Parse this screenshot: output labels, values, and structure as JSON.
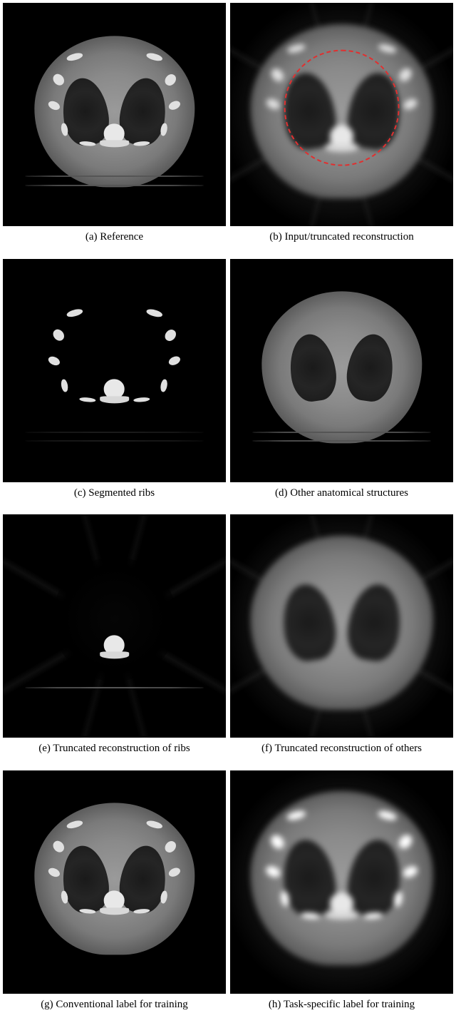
{
  "figure": {
    "background_color": "#ffffff",
    "caption_fontsize": 15,
    "caption_color": "#000000",
    "caption_font": "Times New Roman",
    "grid_gap_row": 8,
    "grid_gap_col": 6,
    "panels": [
      {
        "id": "a",
        "label": "(a) Reference",
        "type": "ct-scan",
        "variant": "reference",
        "colors": {
          "background": "#000000",
          "body": "#8a8a8a",
          "lung": "#1a1a1a",
          "bone": "#e8e8e8"
        }
      },
      {
        "id": "b",
        "label": "(b) Input/truncated reconstruction",
        "type": "ct-scan",
        "variant": "truncated-input",
        "colors": {
          "background": "#000000",
          "body": "#8a8a8a",
          "lung": "#1a1a1a",
          "bone": "#e8e8e8",
          "dashed_circle": "#e03030"
        },
        "annotation": {
          "dashed_circle_diameter_pct": 52,
          "dashed_circle_stroke": 2,
          "dashed_circle_style": "dashed"
        }
      },
      {
        "id": "c",
        "label": "(c) Segmented ribs",
        "type": "ct-scan",
        "variant": "ribs-only",
        "colors": {
          "background": "#000000",
          "bone": "#e0e0e0"
        }
      },
      {
        "id": "d",
        "label": "(d) Other anatomical structures",
        "type": "ct-scan",
        "variant": "no-ribs",
        "colors": {
          "background": "#000000",
          "body": "#9a9a9a",
          "lung": "#1a1a1a"
        }
      },
      {
        "id": "e",
        "label": "(e) Truncated reconstruction of ribs",
        "type": "ct-scan",
        "variant": "truncated-ribs",
        "colors": {
          "background": "#000000",
          "bone": "#e0e0e0",
          "artifact": "#5a5a5a"
        }
      },
      {
        "id": "f",
        "label": "(f) Truncated reconstruction of others",
        "type": "ct-scan",
        "variant": "truncated-others",
        "colors": {
          "background": "#000000",
          "body": "#9a9a9a",
          "lung": "#1a1a1a"
        }
      },
      {
        "id": "g",
        "label": "(g) Conventional label for training",
        "type": "ct-scan",
        "variant": "conventional-label",
        "colors": {
          "background": "#000000",
          "body": "#8a8a8a",
          "lung": "#1a1a1a",
          "bone": "#e8e8e8"
        }
      },
      {
        "id": "h",
        "label": "(h) Task-specific label for training",
        "type": "ct-scan",
        "variant": "task-specific-label",
        "colors": {
          "background": "#000000",
          "body": "#8a8a8a",
          "lung": "#1a1a1a",
          "bone": "#ffffff"
        }
      }
    ]
  }
}
